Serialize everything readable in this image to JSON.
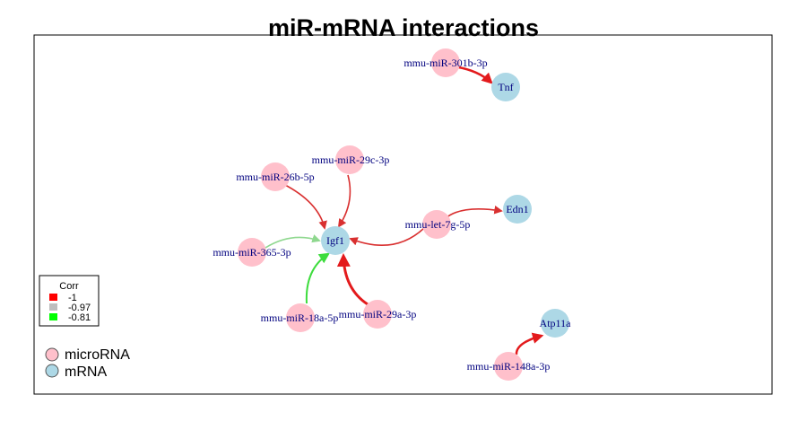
{
  "title": "miR-mRNA interactions",
  "colors": {
    "microRNA_fill": "#ffc0cb",
    "mRNA_fill": "#add8e6",
    "label_color": "#00007f",
    "edge_red": "#e31a1c",
    "edge_green": "#3ddc3d"
  },
  "nodes": {
    "mir301b": {
      "label": "mmu-miR-301b-3p",
      "type": "microRNA"
    },
    "tnf": {
      "label": "Tnf",
      "type": "mRNA"
    },
    "mir29c": {
      "label": "mmu-miR-29c-3p",
      "type": "microRNA"
    },
    "mir26b": {
      "label": "mmu-miR-26b-5p",
      "type": "microRNA"
    },
    "edn1": {
      "label": "Edn1",
      "type": "mRNA"
    },
    "let7g": {
      "label": "mmu-let-7g-5p",
      "type": "microRNA"
    },
    "igf1": {
      "label": "Igf1",
      "type": "mRNA"
    },
    "mir365": {
      "label": "mmu-miR-365-3p",
      "type": "microRNA"
    },
    "mir18a": {
      "label": "mmu-miR-18a-5p",
      "type": "microRNA"
    },
    "mir29a": {
      "label": "mmu-miR-29a-3p",
      "type": "microRNA"
    },
    "atp11a": {
      "label": "Atp11a",
      "type": "mRNA"
    },
    "mir148a": {
      "label": "mmu-miR-148a-3p",
      "type": "microRNA"
    }
  },
  "edges": [
    {
      "from": "mmu-miR-301b-3p",
      "to": "Tnf",
      "corr": -1
    },
    {
      "from": "mmu-miR-29c-3p",
      "to": "Igf1",
      "corr": -0.97
    },
    {
      "from": "mmu-miR-26b-5p",
      "to": "Igf1",
      "corr": -0.97
    },
    {
      "from": "mmu-let-7g-5p",
      "to": "Igf1",
      "corr": -0.97
    },
    {
      "from": "mmu-let-7g-5p",
      "to": "Edn1",
      "corr": -0.97
    },
    {
      "from": "mmu-miR-365-3p",
      "to": "Igf1",
      "corr": -0.81
    },
    {
      "from": "mmu-miR-18a-5p",
      "to": "Igf1",
      "corr": -0.81
    },
    {
      "from": "mmu-miR-29a-3p",
      "to": "Igf1",
      "corr": -1
    },
    {
      "from": "mmu-miR-148a-3p",
      "to": "Atp11a",
      "corr": -1
    }
  ],
  "corr_legend": {
    "title": "Corr",
    "items": [
      {
        "label": "-1",
        "color": "#ff0000"
      },
      {
        "label": "-0.97",
        "color": "#bebebe"
      },
      {
        "label": "-0.81",
        "color": "#00ff00"
      }
    ]
  },
  "type_legend": {
    "microRNA": "microRNA",
    "mRNA": "mRNA"
  }
}
